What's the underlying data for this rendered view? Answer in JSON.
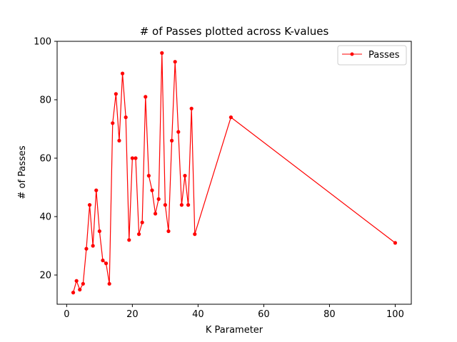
{
  "chart_data": {
    "type": "line",
    "title": "# of Passes plotted across K-values",
    "xlabel": "K Parameter",
    "ylabel": "# of Passes",
    "xlim": [
      -2.9,
      104.9
    ],
    "ylim": [
      10,
      100
    ],
    "xticks": [
      0,
      20,
      40,
      60,
      80,
      100
    ],
    "yticks": [
      20,
      40,
      60,
      80,
      100
    ],
    "grid": false,
    "legend": "top-right",
    "series": [
      {
        "name": "Passes",
        "color": "#ff0000",
        "marker": "circle",
        "x": [
          2,
          3,
          4,
          5,
          6,
          7,
          8,
          9,
          10,
          11,
          12,
          13,
          14,
          15,
          16,
          17,
          18,
          19,
          20,
          21,
          22,
          23,
          24,
          25,
          26,
          27,
          28,
          29,
          30,
          31,
          32,
          33,
          34,
          35,
          36,
          37,
          38,
          39,
          50,
          100
        ],
        "y": [
          14,
          18,
          15,
          17,
          29,
          44,
          30,
          49,
          35,
          25,
          24,
          17,
          72,
          82,
          66,
          89,
          74,
          32,
          60,
          60,
          34,
          38,
          81,
          54,
          49,
          41,
          46,
          96,
          44,
          35,
          66,
          93,
          69,
          44,
          54,
          44,
          77,
          34,
          74,
          31
        ]
      }
    ]
  }
}
